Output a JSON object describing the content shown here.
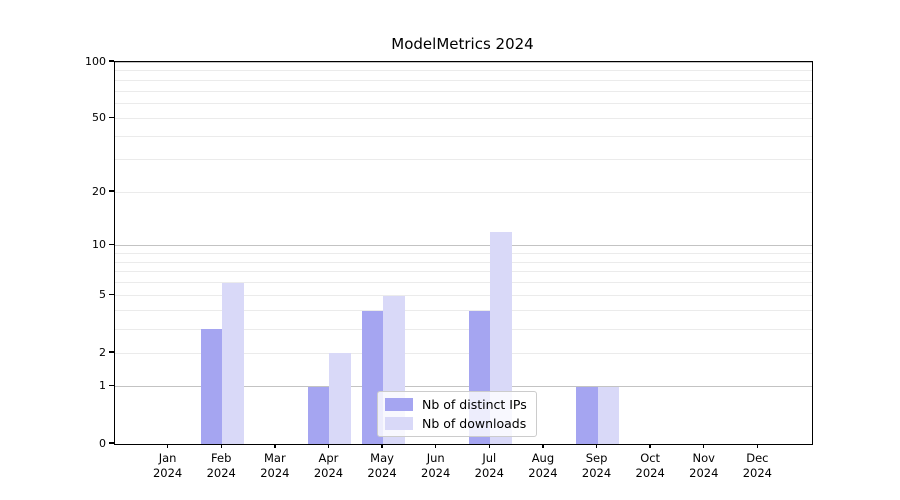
{
  "title": "ModelMetrics 2024",
  "chart_data": {
    "type": "bar",
    "title": "ModelMetrics 2024",
    "categories": [
      "Jan 2024",
      "Feb 2024",
      "Mar 2024",
      "Apr 2024",
      "May 2024",
      "Jun 2024",
      "Jul 2024",
      "Aug 2024",
      "Sep 2024",
      "Oct 2024",
      "Nov 2024",
      "Dec 2024"
    ],
    "month_labels": [
      "Jan",
      "Feb",
      "Mar",
      "Apr",
      "May",
      "Jun",
      "Jul",
      "Aug",
      "Sep",
      "Oct",
      "Nov",
      "Dec"
    ],
    "year_label": "2024",
    "series": [
      {
        "name": "Nb of distinct IPs",
        "color": "#a5a5f1",
        "values": [
          0,
          3,
          0,
          1,
          4,
          0,
          4,
          0,
          1,
          0,
          0,
          0
        ]
      },
      {
        "name": "Nb of downloads",
        "color": "#d9d9f8",
        "values": [
          0,
          6,
          0,
          2,
          5,
          0,
          12,
          0,
          1,
          0,
          0,
          0
        ]
      }
    ],
    "xlabel": "",
    "ylabel": "",
    "yscale": "log1p",
    "ylim": [
      0,
      100
    ],
    "y_tick_labels": [
      "0",
      "1",
      "2",
      "5",
      "10",
      "20",
      "50",
      "100"
    ],
    "y_ticks": [
      0,
      1,
      2,
      5,
      10,
      20,
      50,
      100
    ],
    "y_major_gridlines": [
      1,
      10,
      100
    ],
    "y_minor_gridlines": [
      2,
      3,
      4,
      5,
      6,
      7,
      8,
      9,
      20,
      30,
      40,
      50,
      60,
      70,
      80,
      90
    ],
    "grid": true,
    "legend_position": "lower center",
    "colors": {
      "major_grid": "#c3c3c3",
      "minor_grid": "#ebebeb",
      "spine": "#000000",
      "legend_border": "#cccccc"
    }
  }
}
